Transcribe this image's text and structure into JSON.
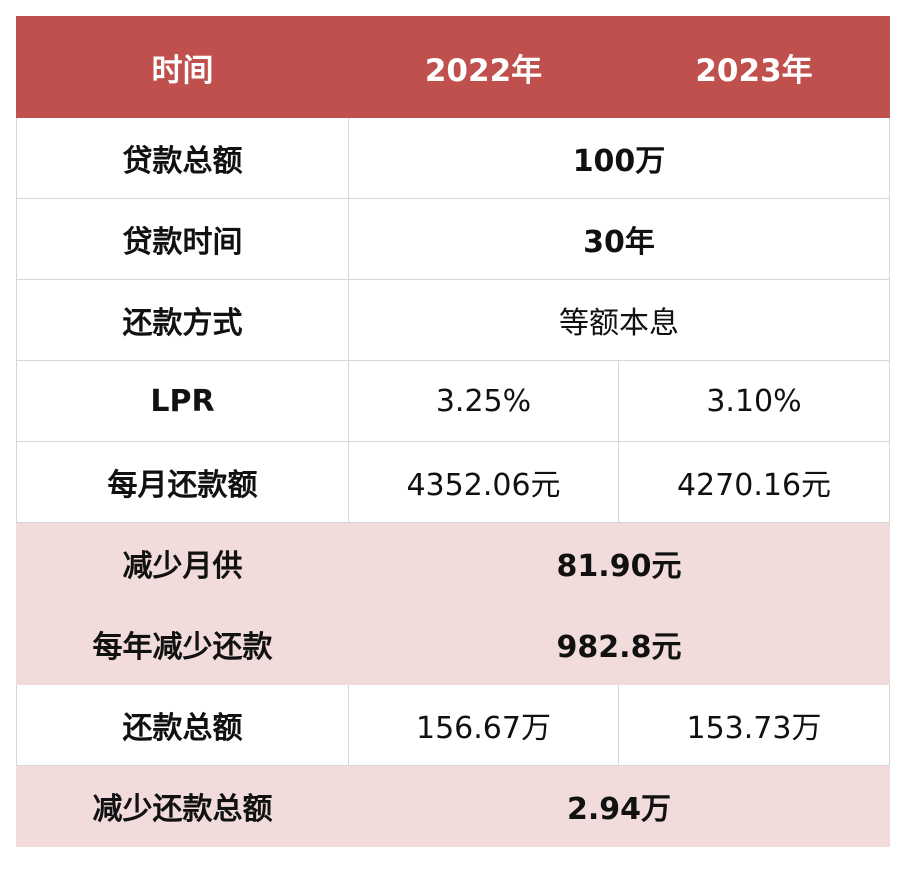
{
  "header": {
    "col_label": "时间",
    "col_2022": "2022年",
    "col_2023": "2023年"
  },
  "rows": {
    "loan_total": {
      "label": "贷款总额",
      "value": "100万"
    },
    "loan_term": {
      "label": "贷款时间",
      "value": "30年"
    },
    "repay_method": {
      "label": "还款方式",
      "value": "等额本息"
    },
    "lpr": {
      "label": "LPR",
      "v2022": "3.25%",
      "v2023": "3.10%"
    },
    "monthly_payment": {
      "label": "每月还款额",
      "v2022": "4352.06元",
      "v2023": "4270.16元"
    },
    "monthly_reduction": {
      "label": "减少月供",
      "value": "81.90元"
    },
    "yearly_reduction": {
      "label": "每年减少还款",
      "value": "982.8元"
    },
    "total_repayment": {
      "label": "还款总额",
      "v2022": "156.67万",
      "v2023": "153.73万"
    },
    "total_reduction": {
      "label": "减少还款总额",
      "value": "2.94万"
    }
  },
  "colors": {
    "header_bg": "#c0504d",
    "highlight_row_bg": "#f2dcdb",
    "highlight_text": "#ee1c1c"
  }
}
